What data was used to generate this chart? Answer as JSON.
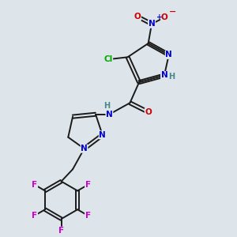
{
  "background_color": "#dde5ea",
  "bond_color": "#1a1a1a",
  "atom_colors": {
    "N": "#0000cc",
    "O": "#cc0000",
    "Cl": "#00aa00",
    "F": "#cc00cc",
    "H": "#448888",
    "C": "#1a1a1a"
  },
  "figsize": [
    3.0,
    3.0
  ],
  "dpi": 100
}
